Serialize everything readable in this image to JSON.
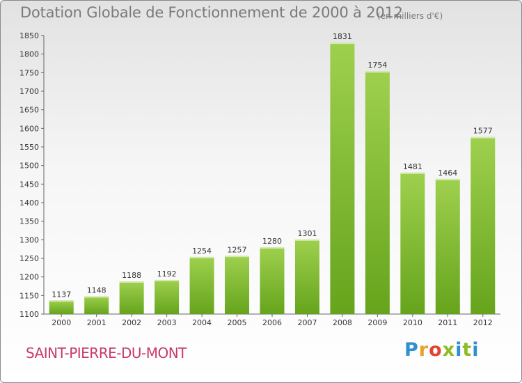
{
  "header": {
    "title": "Dotation Globale de Fonctionnement de 2000 à 2012",
    "unit": "(en milliers d'€)"
  },
  "footer": {
    "commune": "SAINT-PIERRE-DU-MONT",
    "logo": "Proxiti",
    "logo_colors": [
      "#2f8fd0",
      "#e8a12a",
      "#e2442f",
      "#8cbc26",
      "#2f8fd0",
      "#8cbc26"
    ]
  },
  "chart_data": {
    "type": "bar",
    "title": "Dotation Globale de Fonctionnement de 2000 à 2012",
    "xlabel": "",
    "ylabel": "",
    "categories": [
      "2000",
      "2001",
      "2002",
      "2003",
      "2004",
      "2005",
      "2006",
      "2007",
      "2008",
      "2009",
      "2010",
      "2011",
      "2012"
    ],
    "values": [
      1137,
      1148,
      1188,
      1192,
      1254,
      1257,
      1280,
      1301,
      1831,
      1754,
      1481,
      1464,
      1577
    ],
    "ylim": [
      1100,
      1850
    ],
    "yticks": [
      1100,
      1150,
      1200,
      1250,
      1300,
      1350,
      1400,
      1450,
      1500,
      1550,
      1600,
      1650,
      1700,
      1750,
      1800,
      1850
    ],
    "grid": false,
    "legend": "none",
    "bar_color_top": "#9ed04e",
    "bar_color_bottom": "#66a41c"
  }
}
